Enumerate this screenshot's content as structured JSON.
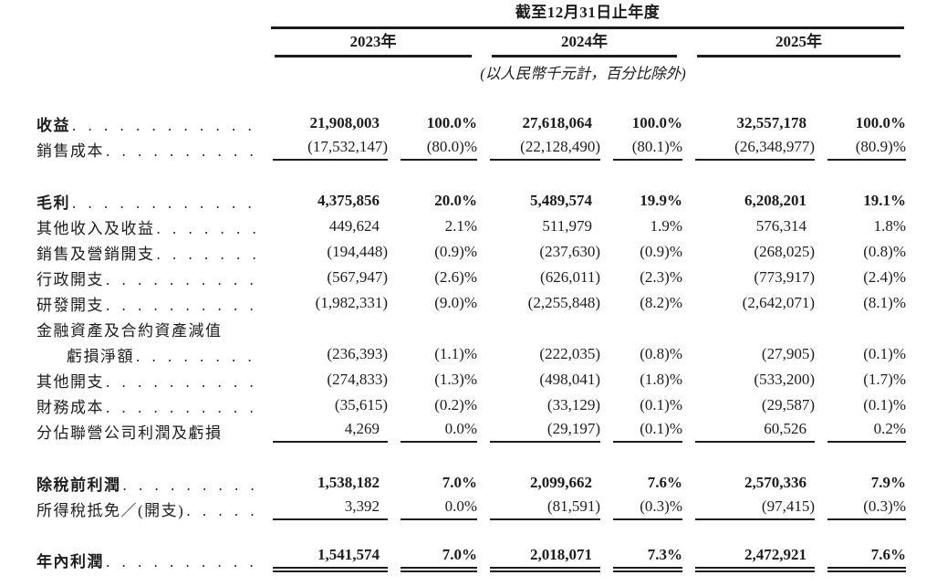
{
  "header": {
    "period_title": "截至12月31日止年度",
    "years": [
      "2023年",
      "2024年",
      "2025年"
    ],
    "unit_note": "(以人民幣千元計，百分比除外)"
  },
  "table": {
    "rows": [
      {
        "label": "收益",
        "bold": true,
        "dots": true,
        "values": [
          "21,908,003",
          "100.0%",
          "27,618,064",
          "100.0%",
          "32,557,178",
          "100.0%"
        ]
      },
      {
        "label": "銷售成本",
        "dots": true,
        "underline": "single",
        "values": [
          "(17,532,147)",
          "(80.0)%",
          "(22,128,490)",
          "(80.1)%",
          "(26,348,977)",
          "(80.9)%"
        ]
      },
      {
        "spacer": 29
      },
      {
        "label": "毛利",
        "bold": true,
        "dots": true,
        "values": [
          "4,375,856",
          "20.0%",
          "5,489,574",
          "19.9%",
          "6,208,201",
          "19.1%"
        ]
      },
      {
        "label": "其他收入及收益",
        "dots": true,
        "values": [
          "449,624",
          "2.1%",
          "511,979",
          "1.9%",
          "576,314",
          "1.8%"
        ]
      },
      {
        "label": "銷售及營銷開支",
        "dots": true,
        "values": [
          "(194,448)",
          "(0.9)%",
          "(237,630)",
          "(0.9)%",
          "(268,025)",
          "(0.8)%"
        ]
      },
      {
        "label": "行政開支",
        "dots": true,
        "values": [
          "(567,947)",
          "(2.6)%",
          "(626,011)",
          "(2.3)%",
          "(773,917)",
          "(2.4)%"
        ]
      },
      {
        "label": "研發開支",
        "dots": true,
        "values": [
          "(1,982,331)",
          "(9.0)%",
          "(2,255,848)",
          "(8.2)%",
          "(2,642,071)",
          "(8.1)%"
        ]
      },
      {
        "label": "金融資產及合約資產減值",
        "dots": false,
        "values": [
          "",
          "",
          "",
          "",
          "",
          ""
        ]
      },
      {
        "label": "虧損淨額",
        "indent": true,
        "dots": true,
        "values": [
          "(236,393)",
          "(1.1)%",
          "(222,035)",
          "(0.8)%",
          "(27,905)",
          "(0.1)%"
        ]
      },
      {
        "label": "其他開支",
        "dots": true,
        "values": [
          "(274,833)",
          "(1.3)%",
          "(498,041)",
          "(1.8)%",
          "(533,200)",
          "(1.7)%"
        ]
      },
      {
        "label": "財務成本",
        "dots": true,
        "values": [
          "(35,615)",
          "(0.2)%",
          "(33,129)",
          "(0.1)%",
          "(29,587)",
          "(0.1)%"
        ]
      },
      {
        "label": "分佔聯營公司利潤及虧損",
        "dots": false,
        "underline": "single",
        "values": [
          "4,269",
          "0.0%",
          "(29,197)",
          "(0.1)%",
          "60,526",
          "0.2%"
        ]
      },
      {
        "spacer": 29
      },
      {
        "label": "除稅前利潤",
        "bold": true,
        "dots": true,
        "values": [
          "1,538,182",
          "7.0%",
          "2,099,662",
          "7.6%",
          "2,570,336",
          "7.9%"
        ]
      },
      {
        "label": "所得稅抵免／(開支)",
        "dots": true,
        "underline": "single",
        "values": [
          "3,392",
          "0.0%",
          "(81,591)",
          "(0.3)%",
          "(97,415)",
          "(0.3)%"
        ]
      },
      {
        "spacer": 28
      },
      {
        "label": "年內利潤",
        "bold": true,
        "dots": true,
        "underline": "double",
        "values": [
          "1,541,574",
          "7.0%",
          "2,018,071",
          "7.3%",
          "2,472,921",
          "7.6%"
        ]
      }
    ]
  }
}
